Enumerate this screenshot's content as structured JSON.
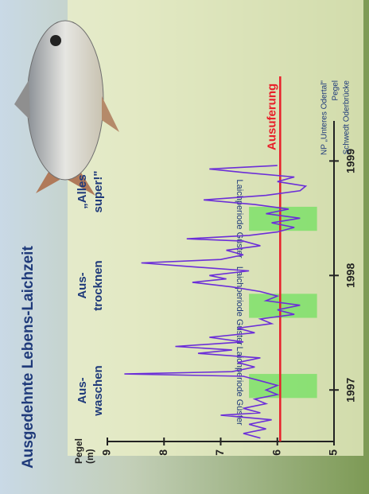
{
  "title": "Ausgedehnte Lebens-Laichzeit",
  "chart_data": {
    "type": "line",
    "y_label_lines": [
      "Pegel",
      "(m)"
    ],
    "x": [
      1996.58,
      1996.62,
      1996.66,
      1996.7,
      1996.74,
      1996.78,
      1996.8,
      1996.84,
      1996.88,
      1996.92,
      1996.96,
      1997.0,
      1997.04,
      1997.08,
      1997.12,
      1997.14,
      1997.16,
      1997.2,
      1997.24,
      1997.28,
      1997.32,
      1997.35,
      1997.38,
      1997.42,
      1997.46,
      1997.5,
      1997.54,
      1997.58,
      1997.62,
      1997.66,
      1997.7,
      1997.74,
      1997.78,
      1997.82,
      1997.86,
      1997.9,
      1997.94,
      1997.97,
      1998.0,
      1998.04,
      1998.08,
      1998.11,
      1998.14,
      1998.18,
      1998.22,
      1998.26,
      1998.3,
      1998.32,
      1998.35,
      1998.38,
      1998.42,
      1998.46,
      1998.5,
      1998.54,
      1998.58,
      1998.62,
      1998.66,
      1998.7,
      1998.74,
      1998.78,
      1998.82,
      1998.86,
      1998.9,
      1998.93,
      1998.96
    ],
    "values": [
      6.3,
      6.6,
      6.2,
      6.5,
      6.1,
      7.0,
      6.3,
      6.6,
      6.2,
      6.4,
      6.0,
      6.2,
      6.0,
      6.3,
      6.6,
      8.7,
      6.8,
      6.4,
      6.7,
      6.3,
      7.4,
      6.8,
      7.8,
      6.6,
      7.2,
      6.4,
      6.7,
      6.1,
      6.3,
      5.7,
      6.0,
      5.6,
      6.2,
      6.0,
      6.3,
      6.8,
      7.5,
      6.9,
      7.2,
      6.5,
      7.6,
      8.4,
      7.0,
      6.6,
      6.9,
      6.3,
      6.6,
      7.6,
      6.5,
      6.0,
      5.7,
      6.1,
      5.6,
      6.2,
      5.8,
      6.4,
      7.3,
      6.2,
      5.6,
      5.5,
      6.0,
      5.7,
      6.6,
      7.2,
      6.0
    ],
    "color": "#6b2ed8",
    "xlim": [
      1996.55,
      1999.35
    ],
    "xticks": [
      1997,
      1998,
      1999
    ],
    "ylim": [
      5,
      9
    ],
    "yticks": [
      5,
      6,
      7,
      8,
      9
    ],
    "threshold": {
      "value": 5.95,
      "label": "Ausuferung",
      "color": "#e8202a"
    },
    "shaded_periods": [
      {
        "x": [
          1996.93,
          1997.14
        ],
        "y": [
          5.3,
          6.5
        ],
        "label": "Laichperiode Güster"
      },
      {
        "x": [
          1997.63,
          1997.84
        ],
        "y": [
          5.3,
          6.5
        ],
        "label": "Laichperiode Güster"
      },
      {
        "x": [
          1998.39,
          1998.6
        ],
        "y": [
          5.3,
          6.5
        ],
        "label": "Laichperiode Güster"
      }
    ],
    "shade_color": "#7ee06a",
    "annotations": [
      {
        "lines": [
          "Aus-",
          "waschen"
        ]
      },
      {
        "lines": [
          "Aus-",
          "trocknen"
        ]
      },
      {
        "lines": [
          "„Alles",
          "super!\""
        ]
      }
    ],
    "source_lines": [
      "NP „Unteres Odertal\"",
      "Pegel",
      "Schwedt Oderbrücke"
    ]
  }
}
